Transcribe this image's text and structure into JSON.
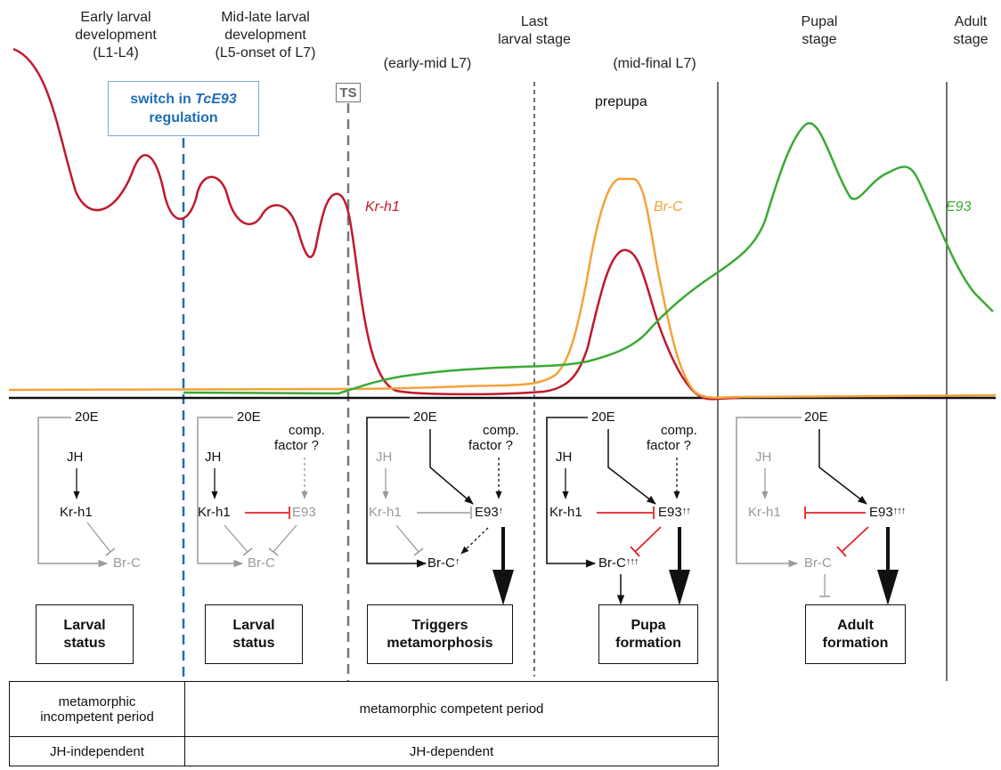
{
  "stages": {
    "early": "Early larval development (L1-L4)",
    "early_l1": "Early larval",
    "early_l2": "development",
    "early_l3": "(L1-L4)",
    "mid_l1": "Mid-late larval",
    "mid_l2": "development",
    "mid_l3": "(L5-onset of L7)",
    "last_l1": "Last",
    "last_l2": "larval stage",
    "early_mid": "(early-mid  L7)",
    "mid_final": "(mid-final  L7)",
    "pupal_l1": "Pupal",
    "pupal_l2": "stage",
    "adult_l1": "Adult",
    "adult_l2": "stage"
  },
  "switch_box": {
    "line1": "switch in",
    "gene": "TcE93",
    "line2": "regulation"
  },
  "ts_label": "TS",
  "prepupa": "prepupa",
  "curve_labels": {
    "krh1": "Kr-h1",
    "brc": "Br-C",
    "e93": "E93"
  },
  "colors": {
    "krh1": "#c0192b",
    "brc": "#f2a33a",
    "e93": "#3aaa35",
    "inhibit": "#e2242c",
    "switch": "#1f6db3",
    "inactive": "#9a9a9a"
  },
  "network": {
    "p1": {
      "h20e": "20E",
      "jh": "JH",
      "krh1": "Kr-h1",
      "brc": "Br-C"
    },
    "p2": {
      "h20e": "20E",
      "jh": "JH",
      "krh1": "Kr-h1",
      "comp1": "comp.",
      "comp2": "factor ?",
      "e93": "E93",
      "brc": "Br-C"
    },
    "p3": {
      "h20e": "20E",
      "jh": "JH",
      "krh1": "Kr-h1",
      "comp1": "comp.",
      "comp2": "factor ?",
      "e93": "E93",
      "e93_arrows": "↑",
      "brc": "Br-C",
      "brc_arrows": "↑"
    },
    "p4": {
      "h20e": "20E",
      "jh": "JH",
      "krh1": "Kr-h1",
      "comp1": "comp.",
      "comp2": "factor ?",
      "e93": "E93",
      "e93_arrows": "↑↑",
      "brc": "Br-C",
      "brc_arrows": "↑↑↑"
    },
    "p5": {
      "h20e": "20E",
      "jh": "JH",
      "krh1": "Kr-h1",
      "e93": "E93",
      "e93_arrows": "↑↑↑",
      "brc": "Br-C"
    }
  },
  "outcomes": {
    "o1_l1": "Larval",
    "o1_l2": "status",
    "o2_l1": "Larval",
    "o2_l2": "status",
    "o3_l1": "Triggers",
    "o3_l2": "metamorphosis",
    "o4_l1": "Pupa",
    "o4_l2": "formation",
    "o5_l1": "Adult",
    "o5_l2": "formation"
  },
  "periods": {
    "incompetent_l1": "metamorphic",
    "incompetent_l2": "incompetent period",
    "competent": "metamorphic competent period",
    "jh_independent": "JH-independent",
    "jh_dependent": "JH-dependent"
  }
}
